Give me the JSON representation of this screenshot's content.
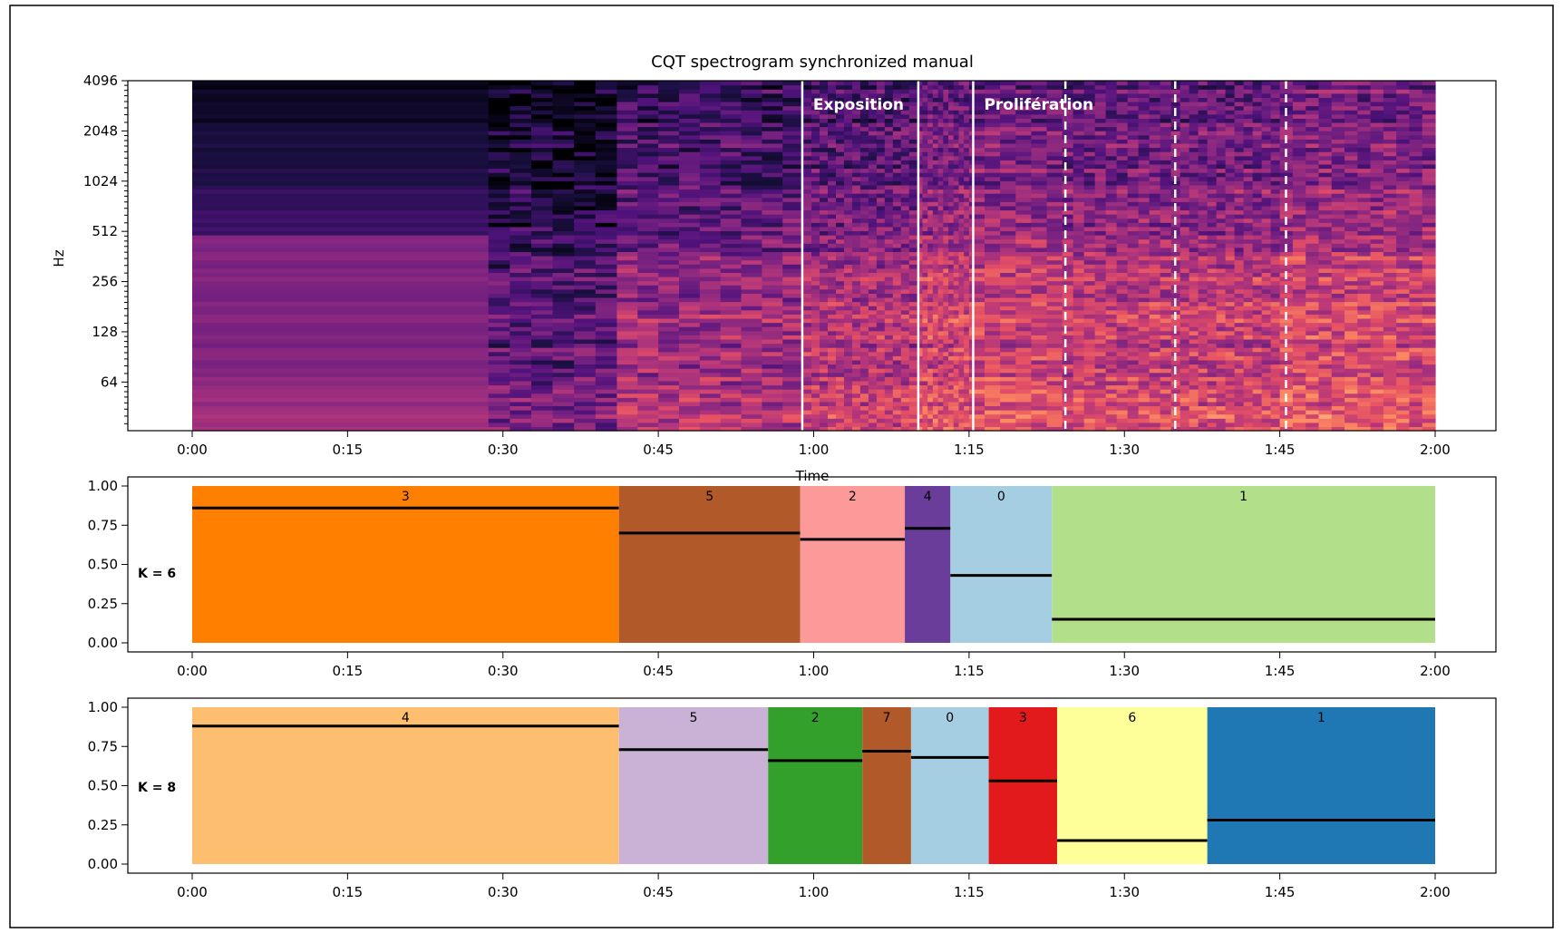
{
  "chart_data": [
    {
      "type": "heatmap",
      "title": "CQT spectrogram synchronized manual",
      "xlabel": "Time",
      "ylabel": "Hz",
      "xlim": [
        0,
        120
      ],
      "yscale": "log2",
      "ylim": [
        32.7,
        4096
      ],
      "x_ticks": [
        "0:00",
        "0:15",
        "0:30",
        "0:45",
        "1:00",
        "1:15",
        "1:30",
        "1:45",
        "2:00"
      ],
      "y_ticks": [
        "64",
        "128",
        "256",
        "512",
        "1024",
        "2048",
        "4096"
      ],
      "colormap": "magma",
      "beat_boundaries": [
        0,
        28.6,
        41,
        59,
        70,
        75,
        84,
        94.5,
        105,
        120
      ],
      "section_boundaries_solid": [
        58.9,
        70.1,
        75.4
      ],
      "section_boundaries_dashed": [
        84.3,
        94.9,
        105.6
      ],
      "sections": [
        {
          "label": "Exposition",
          "start": 58.9
        },
        {
          "label": "Prolifération",
          "start": 75.4
        }
      ]
    },
    {
      "type": "bar",
      "ylabel": "K = 6",
      "xlim": [
        0,
        120
      ],
      "ylim": [
        0,
        1
      ],
      "y_ticks": [
        "0.00",
        "0.25",
        "0.50",
        "0.75",
        "1.00"
      ],
      "x_ticks": [
        "0:00",
        "0:15",
        "0:30",
        "0:45",
        "1:00",
        "1:15",
        "1:30",
        "1:45",
        "2:00"
      ],
      "segments": [
        {
          "label": "3",
          "start": 0,
          "end": 41.2,
          "level": 0.86,
          "color": "#ff7f00"
        },
        {
          "label": "5",
          "start": 41.2,
          "end": 58.7,
          "level": 0.7,
          "color": "#b15928"
        },
        {
          "label": "2",
          "start": 58.7,
          "end": 68.8,
          "level": 0.66,
          "color": "#fb9a99"
        },
        {
          "label": "4",
          "start": 68.8,
          "end": 73.2,
          "level": 0.73,
          "color": "#6a3d9a"
        },
        {
          "label": "0",
          "start": 73.2,
          "end": 83.0,
          "level": 0.43,
          "color": "#a6cee3"
        },
        {
          "label": "1",
          "start": 83.0,
          "end": 120,
          "level": 0.15,
          "color": "#b2df8a"
        }
      ]
    },
    {
      "type": "bar",
      "ylabel": "K = 8",
      "xlim": [
        0,
        120
      ],
      "ylim": [
        0,
        1
      ],
      "y_ticks": [
        "0.00",
        "0.25",
        "0.50",
        "0.75",
        "1.00"
      ],
      "x_ticks": [
        "0:00",
        "0:15",
        "0:30",
        "0:45",
        "1:00",
        "1:15",
        "1:30",
        "1:45",
        "2:00"
      ],
      "segments": [
        {
          "label": "4",
          "start": 0,
          "end": 41.2,
          "level": 0.88,
          "color": "#fdbf6f"
        },
        {
          "label": "5",
          "start": 41.2,
          "end": 55.6,
          "level": 0.73,
          "color": "#cab2d6"
        },
        {
          "label": "2",
          "start": 55.6,
          "end": 64.7,
          "level": 0.66,
          "color": "#33a02c"
        },
        {
          "label": "7",
          "start": 64.7,
          "end": 69.4,
          "level": 0.72,
          "color": "#b15928"
        },
        {
          "label": "0",
          "start": 69.4,
          "end": 76.9,
          "level": 0.68,
          "color": "#a6cee3"
        },
        {
          "label": "3",
          "start": 76.9,
          "end": 83.5,
          "level": 0.53,
          "color": "#e31a1c"
        },
        {
          "label": "6",
          "start": 83.5,
          "end": 98.0,
          "level": 0.15,
          "color": "#ffff99"
        },
        {
          "label": "1",
          "start": 98.0,
          "end": 120,
          "level": 0.28,
          "color": "#1f78b4"
        }
      ]
    }
  ]
}
